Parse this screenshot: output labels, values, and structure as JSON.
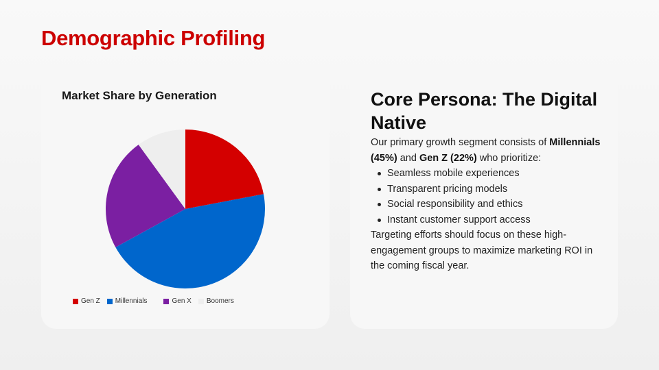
{
  "page": {
    "title": "Demographic Profiling"
  },
  "left_card": {
    "chart_title": "Market Share by Generation"
  },
  "right_card": {
    "title": "Core Persona: The Digital Native",
    "intro_pre": "Our primary growth segment consists of ",
    "intro_bold1": "Millennials (45%)",
    "intro_mid": " and ",
    "intro_bold2": "Gen Z (22%)",
    "intro_post": " who prioritize:",
    "bullets": [
      "Seamless mobile experiences",
      "Transparent pricing models",
      "Social responsibility and ethics",
      "Instant customer support access"
    ],
    "closing": "Targeting efforts should focus on these high-engagement groups to maximize marketing ROI in the coming fiscal year."
  },
  "legend": [
    {
      "label": "Gen Z",
      "color": "#d40000"
    },
    {
      "label": "Millennials",
      "color": "#0066cc"
    },
    {
      "label": "Gen X",
      "color": "#7b1fa2"
    },
    {
      "label": "Boomers",
      "color": "#eeeeee"
    }
  ],
  "chart_data": {
    "type": "pie",
    "title": "Market Share by Generation",
    "categories": [
      "Gen Z",
      "Millennials",
      "Gen X",
      "Boomers"
    ],
    "values": [
      22,
      45,
      23,
      10
    ],
    "colors": [
      "#d40000",
      "#0066cc",
      "#7b1fa2",
      "#eeeeee"
    ],
    "legend_position": "bottom",
    "start_angle": "12 o'clock, clockwise"
  }
}
